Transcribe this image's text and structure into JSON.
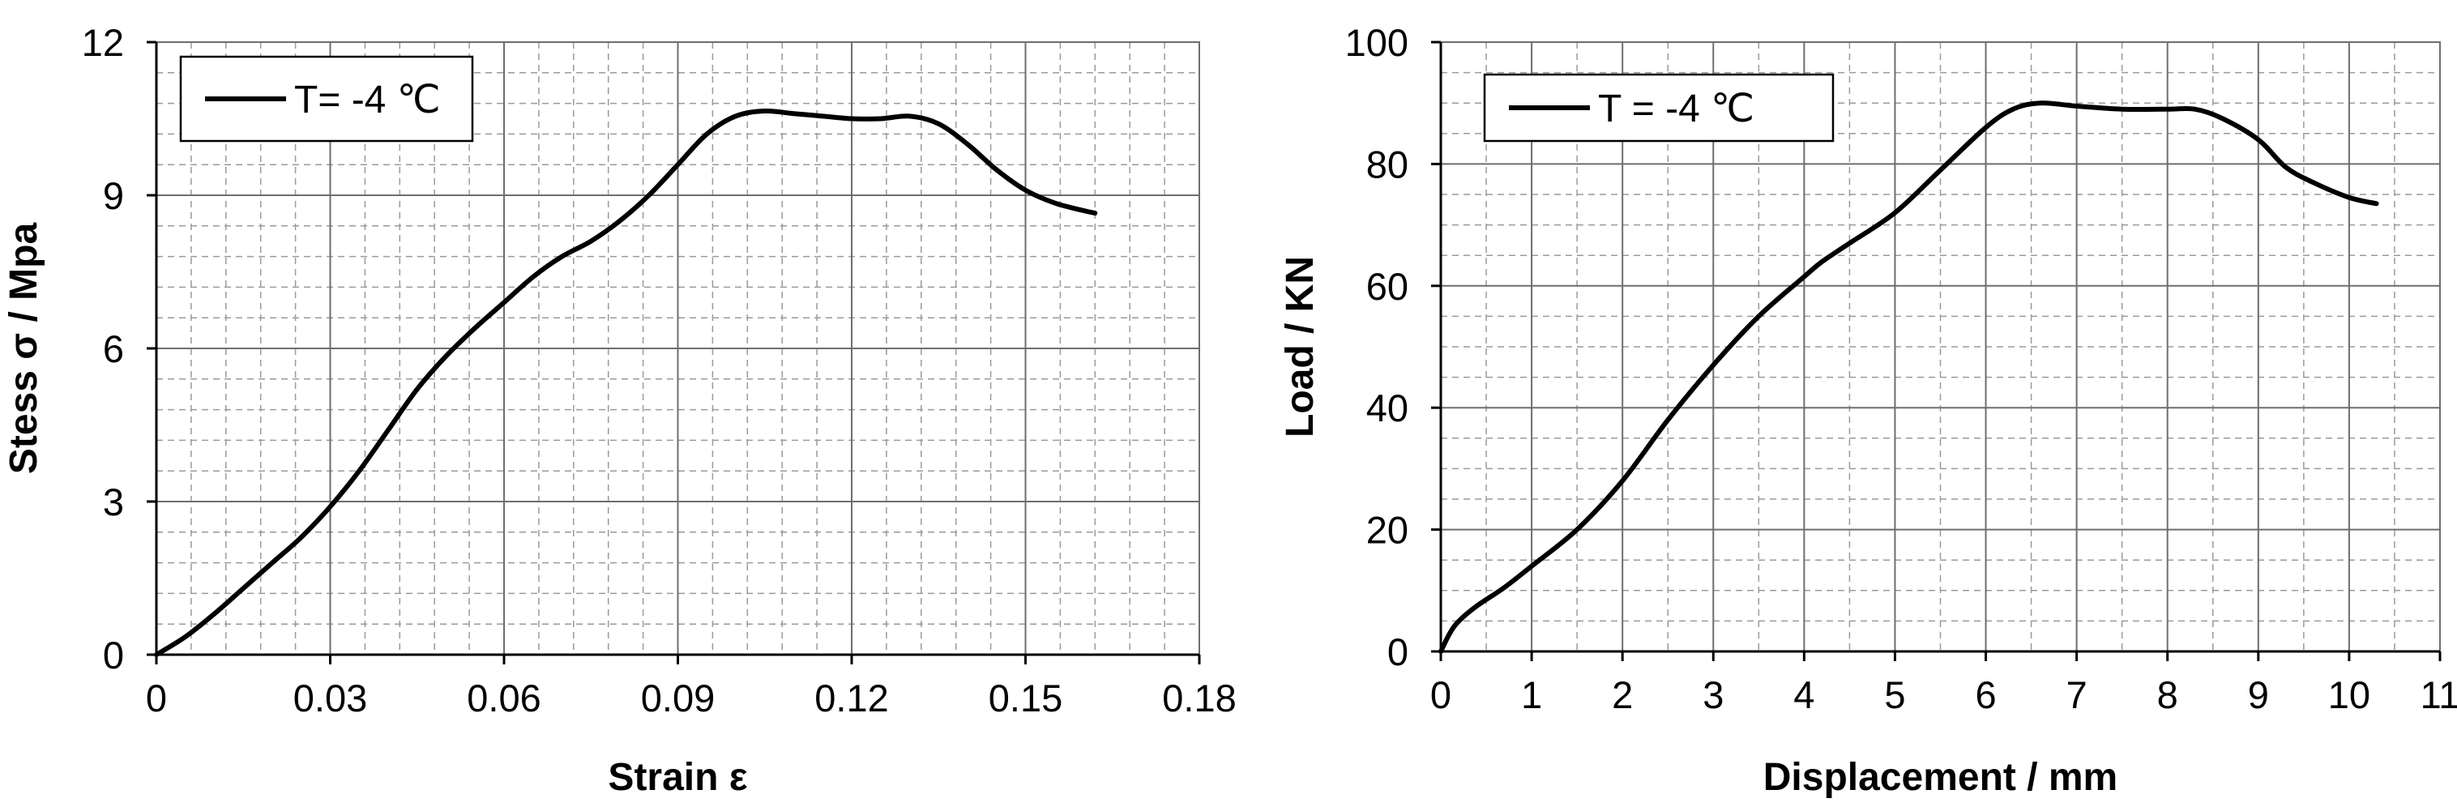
{
  "chart_data": [
    {
      "type": "line",
      "xlabel": "Strain ε",
      "ylabel": "Stess σ / Mpa",
      "xlim": [
        0,
        0.18
      ],
      "ylim": [
        0,
        12
      ],
      "xticks": [
        "0",
        "0.03",
        "0.06",
        "0.09",
        "0.12",
        "0.15",
        "0.18"
      ],
      "yticks": [
        "0",
        "3",
        "6",
        "9",
        "12"
      ],
      "grid": "major solid, minor dashed",
      "legend_position": "top-left",
      "series": [
        {
          "name": "T= -4 ℃",
          "color": "#000000",
          "x": [
            0,
            0.005,
            0.01,
            0.015,
            0.02,
            0.025,
            0.03,
            0.035,
            0.04,
            0.045,
            0.05,
            0.055,
            0.06,
            0.065,
            0.07,
            0.075,
            0.08,
            0.085,
            0.09,
            0.095,
            0.1,
            0.105,
            0.11,
            0.115,
            0.12,
            0.125,
            0.13,
            0.135,
            0.14,
            0.145,
            0.15,
            0.155,
            0.16,
            0.162
          ],
          "y": [
            0,
            0.35,
            0.8,
            1.3,
            1.8,
            2.3,
            2.9,
            3.6,
            4.4,
            5.2,
            5.85,
            6.4,
            6.9,
            7.4,
            7.8,
            8.1,
            8.5,
            9.0,
            9.6,
            10.2,
            10.55,
            10.65,
            10.6,
            10.55,
            10.5,
            10.5,
            10.55,
            10.4,
            10.0,
            9.5,
            9.1,
            8.85,
            8.7,
            8.65
          ]
        }
      ]
    },
    {
      "type": "line",
      "xlabel": "Displacement / mm",
      "ylabel": "Load / KN",
      "xlim": [
        0,
        11
      ],
      "ylim": [
        0,
        100
      ],
      "xticks": [
        "0",
        "1",
        "2",
        "3",
        "4",
        "5",
        "6",
        "7",
        "8",
        "9",
        "10",
        "11"
      ],
      "yticks": [
        "0",
        "20",
        "40",
        "60",
        "80",
        "100"
      ],
      "grid": "major solid, minor dashed",
      "legend_position": "top-left",
      "series": [
        {
          "name": "T = -4 ℃",
          "color": "#000000",
          "x": [
            0,
            0.1,
            0.2,
            0.4,
            0.7,
            1,
            1.5,
            2,
            2.5,
            3,
            3.5,
            4,
            4.2,
            4.5,
            5,
            5.5,
            6,
            6.3,
            6.6,
            7,
            7.5,
            8,
            8.3,
            8.6,
            9,
            9.3,
            9.6,
            10,
            10.3
          ],
          "y": [
            0,
            3,
            5,
            7.5,
            10.5,
            14,
            20,
            28,
            38,
            47,
            55,
            61.5,
            64,
            67,
            72,
            79,
            86,
            89,
            90,
            89.5,
            89,
            89,
            89,
            87.5,
            84,
            79.5,
            77,
            74.5,
            73.5
          ]
        }
      ]
    }
  ]
}
